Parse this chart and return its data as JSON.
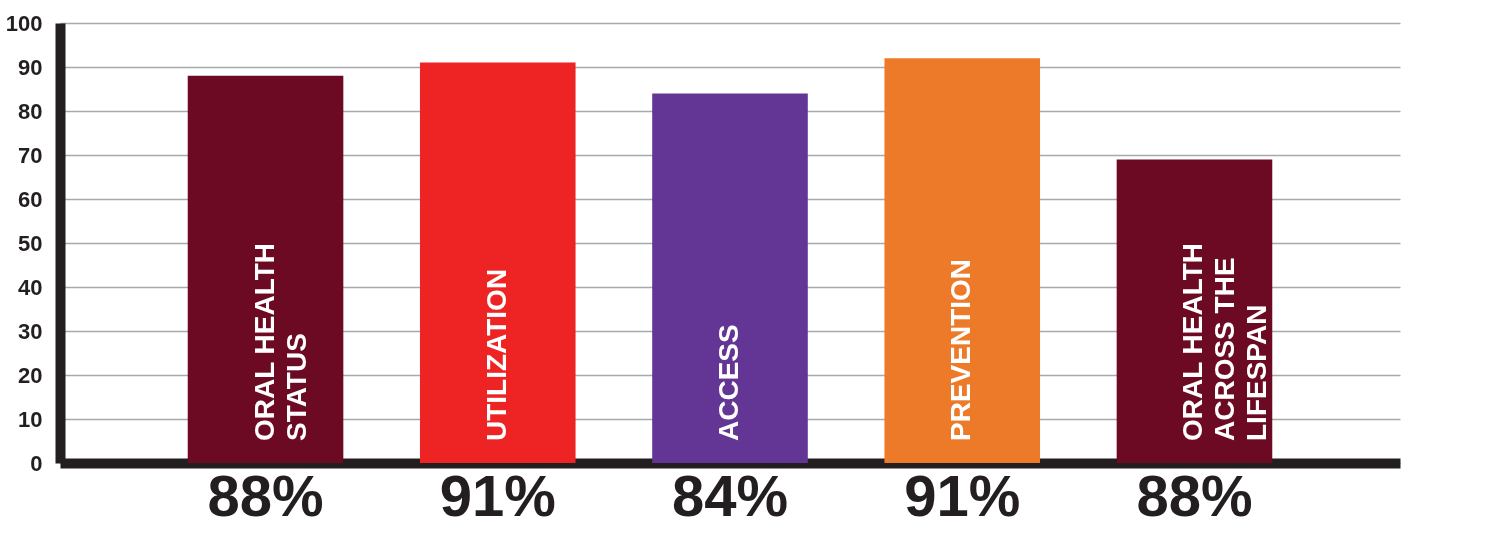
{
  "chart_data": {
    "type": "bar",
    "categories": [
      "ORAL HEALTH\nSTATUS",
      "UTILIZATION",
      "ACCESS",
      "PREVENTION",
      "ORAL HEALTH\nACROSS THE\nLIFESPAN"
    ],
    "values": [
      88,
      91,
      84,
      92,
      69
    ],
    "colors": [
      "#6b0a22",
      "#ee2424",
      "#633695",
      "#ed7a28",
      "#6b0a22"
    ],
    "annotations": [
      "88%",
      "91%",
      "84%",
      "91%",
      "88%"
    ],
    "ylim": [
      0,
      100
    ],
    "yticks": [
      0,
      10,
      20,
      30,
      40,
      50,
      60,
      70,
      80,
      90,
      100
    ],
    "grid": "y",
    "tick_labels": "y"
  }
}
